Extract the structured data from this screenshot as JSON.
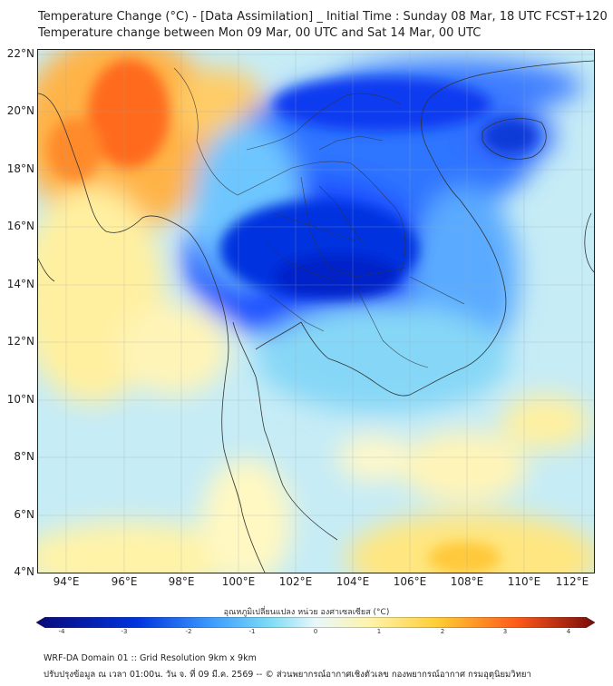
{
  "header": {
    "line1": "Temperature Change (°C) - [Data Assimilation] _ Initial Time : Sunday 08 Mar, 18 UTC FCST+120",
    "line2": "Temperature change between Mon 09 Mar, 00 UTC and Sat 14 Mar, 00 UTC"
  },
  "map": {
    "lat_labels": [
      "22°N",
      "20°N",
      "18°N",
      "16°N",
      "14°N",
      "12°N",
      "10°N",
      "8°N",
      "6°N",
      "4°N"
    ],
    "lon_labels": [
      "94°E",
      "96°E",
      "98°E",
      "100°E",
      "102°E",
      "104°E",
      "106°E",
      "108°E",
      "110°E",
      "112°E"
    ],
    "lon_range": [
      93.0,
      112.4
    ],
    "lat_range": [
      4.0,
      22.2
    ]
  },
  "colorbar": {
    "title": "อุณหภูมิเปลี่ยนแปลง หน่วย องศาเซลเซียส (°C)",
    "ticks": [
      "-4",
      "-3",
      "-2",
      "-1",
      "0",
      "1",
      "2",
      "3",
      "4"
    ],
    "range": [
      -4,
      4
    ],
    "colors": {
      "cold_extreme": "#0a0a7a",
      "cold": "#0033dd",
      "cool": "#3fa0ff",
      "mild_cool": "#7fdcf5",
      "neutral": "#e8f7fb",
      "mild_warm": "#fff3a8",
      "warm": "#ffcc33",
      "hot": "#ff5a1a",
      "hot_extreme": "#7a0a0a"
    }
  },
  "footer": {
    "line1": "WRF-DA Domain 01 :: Grid Resolution 9km x 9km",
    "line2": "ปรับปรุงข้อมูล ณ เวลา 01:00น. วัน จ. ที่ 09 มี.ค. 2569 -- © ส่วนพยากรณ์อากาศเชิงตัวเลข กองพยากรณ์อากาศ กรมอุตุนิยมวิทยา"
  }
}
